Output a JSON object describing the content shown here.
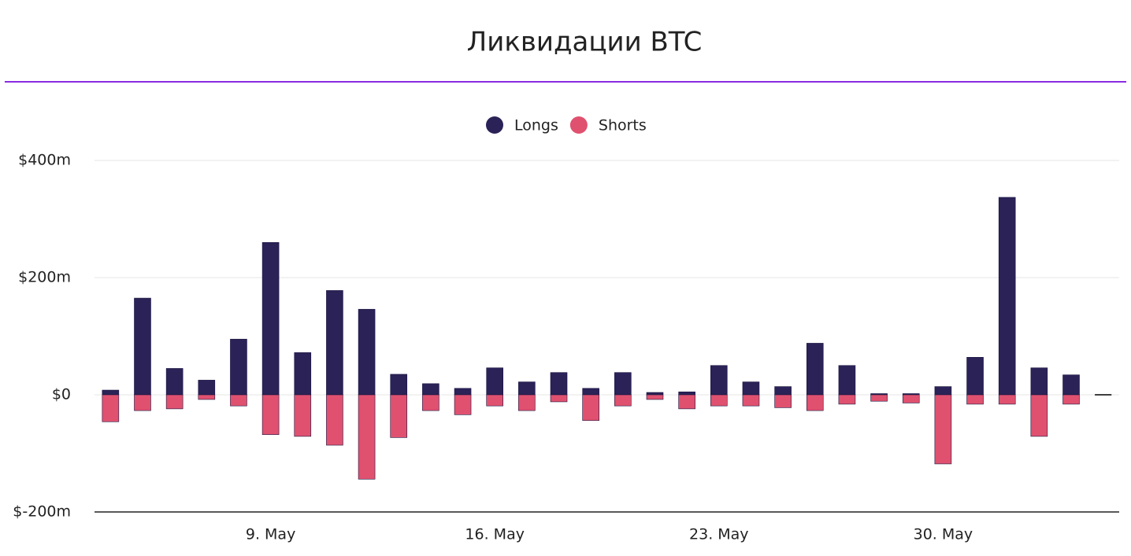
{
  "chart_data": {
    "type": "bar",
    "title": "Ликвидации BTC",
    "categories": [
      null,
      null,
      null,
      null,
      null,
      "9. May",
      null,
      null,
      null,
      null,
      null,
      null,
      "16. May",
      null,
      null,
      null,
      null,
      null,
      null,
      "23. May",
      null,
      null,
      null,
      null,
      null,
      null,
      "30. May",
      null,
      null,
      null,
      null,
      null
    ],
    "series": [
      {
        "name": "Longs",
        "color": "#2b2257",
        "values": [
          8,
          165,
          45,
          25,
          95,
          260,
          72,
          178,
          146,
          35,
          19,
          11,
          46,
          22,
          38,
          11,
          38,
          4,
          5,
          50,
          22,
          14,
          88,
          50,
          2,
          2,
          14,
          64,
          337,
          46,
          34,
          0
        ]
      },
      {
        "name": "Shorts",
        "color": "#e0516f",
        "values": [
          -46,
          -27,
          -24,
          -8,
          -19,
          -68,
          -71,
          -86,
          -144,
          -73,
          -27,
          -34,
          -19,
          -27,
          -12,
          -44,
          -19,
          -8,
          -24,
          -19,
          -19,
          -22,
          -27,
          -16,
          -11,
          -14,
          -118,
          -16,
          -16,
          -71,
          -16,
          0
        ]
      }
    ],
    "ylim": [
      -200,
      400
    ],
    "yticks": [
      {
        "value": -200,
        "label": "$-200m"
      },
      {
        "value": 0,
        "label": "$0"
      },
      {
        "value": 200,
        "label": "$200m"
      },
      {
        "value": 400,
        "label": "$400m"
      }
    ],
    "grid": true,
    "legend": "top"
  }
}
